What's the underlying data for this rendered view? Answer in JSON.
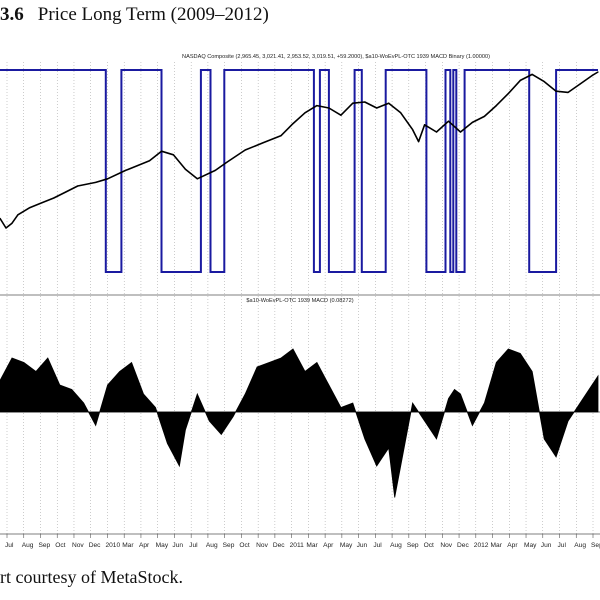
{
  "figure": {
    "number": "3.6",
    "title": "Price Long Term (2009–2012)",
    "caption": "rt courtesy of MetaStock."
  },
  "chart_data": [
    {
      "type": "line",
      "title": "NASDAQ Composite (2,965.45, 3,021.41, 2,953.52, 3,019.51, +59.2000), $a10-WoEvPL-OTC 1939 MACD Binary (1.00000)",
      "series": [
        {
          "color": "#000000",
          "x": [
            0,
            0.01,
            0.02,
            0.03,
            0.05,
            0.07,
            0.09,
            0.11,
            0.13,
            0.16,
            0.18,
            0.21,
            0.23,
            0.25,
            0.27,
            0.29,
            0.31,
            0.33,
            0.36,
            0.38,
            0.41,
            0.44,
            0.47,
            0.49,
            0.51,
            0.53,
            0.55,
            0.57,
            0.59,
            0.61,
            0.63,
            0.65,
            0.67,
            0.69,
            0.7,
            0.71,
            0.73,
            0.75,
            0.77,
            0.79,
            0.81,
            0.83,
            0.85,
            0.87,
            0.89,
            0.91,
            0.93,
            0.95,
            0.97,
            0.99,
            1.0
          ],
          "values": [
            1840,
            1760,
            1800,
            1870,
            1930,
            1970,
            2010,
            2060,
            2110,
            2140,
            2170,
            2240,
            2280,
            2320,
            2400,
            2370,
            2250,
            2170,
            2240,
            2310,
            2410,
            2470,
            2530,
            2630,
            2720,
            2780,
            2760,
            2700,
            2800,
            2810,
            2760,
            2800,
            2720,
            2580,
            2480,
            2620,
            2560,
            2650,
            2560,
            2640,
            2690,
            2780,
            2880,
            2990,
            3040,
            2980,
            2900,
            2890,
            2960,
            3030,
            3060
          ]
        },
        {
          "color": "#1a1aa0",
          "x": [
            0.0,
            0.177,
            0.203,
            0.27,
            0.336,
            0.352,
            0.375,
            0.525,
            0.535,
            0.55,
            0.593,
            0.605,
            0.645,
            0.713,
            0.745,
            0.753,
            0.758,
            0.763,
            0.777,
            0.885,
            0.93,
            1.0
          ],
          "values": [
            1,
            0,
            1,
            0,
            1,
            0,
            1,
            0,
            1,
            0,
            1,
            0,
            1,
            0,
            1,
            0,
            1,
            0,
            1,
            0,
            1,
            1
          ]
        }
      ]
    },
    {
      "type": "area",
      "title": "$a10-WoEvPL-OTC 1939 MACD (0.08272)",
      "series": [
        {
          "color": "#000000",
          "x": [
            0,
            0.02,
            0.04,
            0.06,
            0.08,
            0.1,
            0.12,
            0.14,
            0.16,
            0.18,
            0.2,
            0.22,
            0.24,
            0.26,
            0.28,
            0.3,
            0.31,
            0.33,
            0.35,
            0.37,
            0.39,
            0.41,
            0.43,
            0.45,
            0.47,
            0.49,
            0.51,
            0.53,
            0.55,
            0.57,
            0.59,
            0.61,
            0.63,
            0.65,
            0.66,
            0.67,
            0.69,
            0.71,
            0.73,
            0.75,
            0.76,
            0.77,
            0.79,
            0.81,
            0.83,
            0.85,
            0.87,
            0.89,
            0.91,
            0.93,
            0.95,
            0.97,
            0.99,
            1.0
          ],
          "values": [
            0.35,
            0.6,
            0.55,
            0.45,
            0.6,
            0.3,
            0.25,
            0.1,
            -0.15,
            0.3,
            0.45,
            0.55,
            0.2,
            0.05,
            -0.35,
            -0.6,
            -0.2,
            0.2,
            -0.1,
            -0.25,
            -0.05,
            0.2,
            0.5,
            0.55,
            0.6,
            0.7,
            0.45,
            0.55,
            0.3,
            0.05,
            0.1,
            -0.3,
            -0.6,
            -0.4,
            -0.95,
            -0.6,
            0.1,
            -0.1,
            -0.3,
            0.15,
            0.25,
            0.2,
            -0.15,
            0.1,
            0.55,
            0.7,
            0.65,
            0.45,
            -0.3,
            -0.5,
            -0.1,
            0.1,
            0.3,
            0.4
          ]
        }
      ]
    }
  ],
  "x_axis": {
    "ticks": [
      "Jul",
      "Aug",
      "Sep",
      "Oct",
      "Nov",
      "Dec",
      "2010",
      "Mar",
      "Apr",
      "May",
      "Jun",
      "Jul",
      "Aug",
      "Sep",
      "Oct",
      "Nov",
      "Dec",
      "2011",
      "Mar",
      "Apr",
      "May",
      "Jun",
      "Jul",
      "Aug",
      "Sep",
      "Oct",
      "Nov",
      "Dec",
      "2012",
      "Mar",
      "Apr",
      "May",
      "Jun",
      "Jul",
      "Aug",
      "Sep"
    ]
  }
}
